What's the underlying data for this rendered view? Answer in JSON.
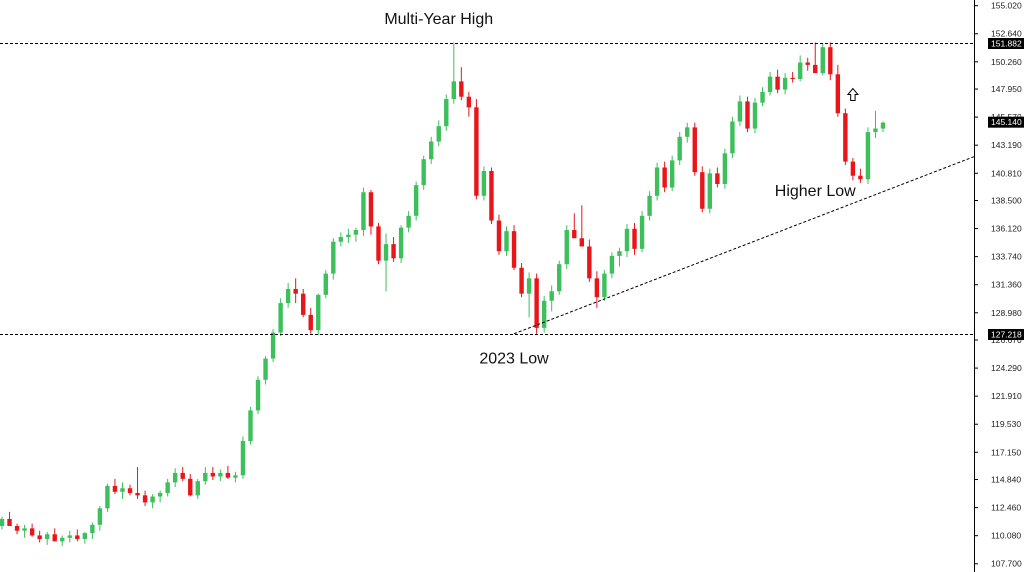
{
  "chart_data": {
    "type": "candlestick",
    "title": "",
    "xlabel": "",
    "ylabel": "",
    "ylim": [
      107.0,
      155.5
    ],
    "y_ticks": [
      "155.020",
      "152.640",
      "150.260",
      "147.950",
      "145.570",
      "143.190",
      "140.810",
      "138.500",
      "136.120",
      "133.740",
      "131.360",
      "128.980",
      "126.670",
      "124.290",
      "121.910",
      "119.530",
      "117.150",
      "114.840",
      "112.460",
      "110.080",
      "107.700"
    ],
    "grid": false,
    "colors": {
      "up": "#3dbf5c",
      "down": "#e8151b",
      "line": "#000000"
    },
    "horizontal_levels": [
      {
        "value": 151.882,
        "label": "151.882"
      },
      {
        "value": 127.218,
        "label": "127.218"
      }
    ],
    "current_price": {
      "value": 145.14,
      "label": "145.140"
    },
    "trendline": {
      "from": {
        "index": 68,
        "value": 127.2
      },
      "to": {
        "index": 140,
        "value": 144.9
      }
    },
    "annotations": [
      {
        "text": "Multi-Year High",
        "index": 58,
        "value": 153.9
      },
      {
        "text": "2023 Low",
        "index": 68,
        "value": 125.1
      },
      {
        "text": "Higher Low",
        "index": 108,
        "value": 139.3
      }
    ],
    "arrow_icon": {
      "name": "up-arrow-icon",
      "index": 113,
      "value": 147.4
    },
    "candles": [
      [
        110.9,
        111.7,
        110.6,
        111.5
      ],
      [
        111.5,
        112.1,
        111.2,
        110.9
      ],
      [
        110.9,
        111.1,
        110.2,
        110.5
      ],
      [
        110.5,
        111.0,
        109.9,
        110.7
      ],
      [
        110.7,
        111.1,
        110.0,
        110.1
      ],
      [
        110.1,
        110.5,
        109.5,
        109.8
      ],
      [
        109.8,
        110.4,
        109.3,
        110.2
      ],
      [
        110.2,
        110.7,
        109.6,
        109.6
      ],
      [
        109.6,
        110.1,
        109.2,
        109.9
      ],
      [
        109.9,
        110.5,
        109.5,
        110.1
      ],
      [
        110.1,
        110.6,
        109.6,
        109.8
      ],
      [
        109.8,
        110.4,
        109.4,
        110.3
      ],
      [
        110.3,
        111.2,
        109.8,
        111.0
      ],
      [
        111.0,
        112.6,
        110.5,
        112.4
      ],
      [
        112.4,
        114.5,
        112.1,
        114.3
      ],
      [
        114.3,
        114.9,
        113.6,
        113.8
      ],
      [
        113.8,
        114.6,
        113.2,
        114.1
      ],
      [
        114.1,
        114.4,
        113.5,
        113.7
      ],
      [
        113.7,
        115.9,
        113.2,
        113.5
      ],
      [
        113.5,
        113.9,
        112.6,
        112.9
      ],
      [
        112.9,
        113.6,
        112.4,
        113.4
      ],
      [
        113.4,
        113.9,
        112.9,
        113.7
      ],
      [
        113.7,
        114.9,
        113.4,
        114.6
      ],
      [
        114.6,
        115.8,
        114.2,
        115.4
      ],
      [
        115.4,
        115.9,
        114.7,
        114.9
      ],
      [
        114.9,
        115.3,
        113.4,
        113.5
      ],
      [
        113.5,
        114.9,
        113.2,
        114.7
      ],
      [
        114.7,
        115.9,
        114.4,
        115.4
      ],
      [
        115.4,
        115.9,
        114.8,
        115.1
      ],
      [
        115.1,
        115.7,
        114.7,
        115.4
      ],
      [
        115.4,
        116.0,
        114.9,
        115.0
      ],
      [
        115.0,
        115.5,
        114.6,
        115.2
      ],
      [
        115.2,
        118.5,
        114.9,
        118.1
      ],
      [
        118.1,
        121.0,
        117.8,
        120.7
      ],
      [
        120.7,
        123.6,
        120.4,
        123.3
      ],
      [
        123.3,
        125.3,
        122.9,
        125.1
      ],
      [
        125.1,
        127.6,
        124.8,
        127.3
      ],
      [
        127.3,
        130.2,
        127.0,
        129.8
      ],
      [
        129.8,
        131.5,
        129.4,
        131.0
      ],
      [
        131.0,
        131.9,
        129.8,
        130.6
      ],
      [
        130.6,
        131.0,
        128.6,
        128.8
      ],
      [
        128.8,
        129.4,
        127.2,
        127.5
      ],
      [
        127.5,
        130.6,
        127.1,
        130.5
      ],
      [
        130.5,
        132.6,
        130.2,
        132.3
      ],
      [
        132.3,
        135.3,
        131.8,
        135.0
      ],
      [
        135.0,
        135.8,
        134.6,
        135.4
      ],
      [
        135.4,
        136.1,
        134.9,
        135.6
      ],
      [
        135.6,
        136.2,
        135.0,
        136.0
      ],
      [
        136.0,
        139.6,
        135.5,
        139.2
      ],
      [
        139.2,
        139.4,
        135.6,
        136.3
      ],
      [
        136.3,
        136.6,
        133.1,
        133.4
      ],
      [
        133.4,
        135.7,
        130.8,
        134.8
      ],
      [
        134.8,
        135.4,
        133.3,
        133.6
      ],
      [
        133.6,
        136.4,
        133.2,
        136.2
      ],
      [
        136.2,
        137.6,
        135.8,
        137.2
      ],
      [
        137.2,
        140.1,
        136.8,
        139.8
      ],
      [
        139.8,
        142.3,
        139.4,
        142.0
      ],
      [
        142.0,
        143.9,
        141.6,
        143.5
      ],
      [
        143.5,
        145.3,
        143.1,
        144.8
      ],
      [
        144.8,
        147.5,
        144.4,
        147.1
      ],
      [
        147.1,
        151.9,
        146.7,
        148.6
      ],
      [
        148.6,
        149.8,
        147.0,
        147.3
      ],
      [
        147.3,
        147.7,
        145.6,
        146.4
      ],
      [
        146.4,
        147.1,
        138.6,
        138.9
      ],
      [
        138.9,
        141.4,
        138.5,
        141.0
      ],
      [
        141.0,
        141.3,
        136.5,
        136.8
      ],
      [
        136.8,
        137.3,
        133.9,
        134.2
      ],
      [
        134.2,
        136.3,
        133.8,
        135.9
      ],
      [
        135.9,
        136.4,
        132.6,
        132.8
      ],
      [
        132.8,
        133.2,
        130.3,
        130.6
      ],
      [
        130.6,
        132.4,
        128.6,
        131.9
      ],
      [
        131.9,
        132.3,
        127.2,
        127.7
      ],
      [
        127.7,
        130.4,
        127.3,
        130.0
      ],
      [
        130.0,
        131.3,
        129.1,
        130.8
      ],
      [
        130.8,
        133.4,
        130.5,
        133.1
      ],
      [
        133.1,
        136.4,
        132.7,
        136.0
      ],
      [
        136.0,
        137.4,
        135.6,
        135.3
      ],
      [
        135.3,
        138.1,
        134.8,
        134.6
      ],
      [
        134.6,
        135.2,
        131.6,
        131.9
      ],
      [
        131.9,
        132.5,
        129.4,
        130.3
      ],
      [
        130.3,
        132.6,
        130.0,
        132.3
      ],
      [
        132.3,
        134.1,
        131.9,
        133.8
      ],
      [
        133.8,
        134.5,
        132.9,
        134.2
      ],
      [
        134.2,
        136.5,
        133.7,
        136.1
      ],
      [
        136.1,
        136.6,
        133.9,
        134.4
      ],
      [
        134.4,
        137.6,
        134.1,
        137.2
      ],
      [
        137.2,
        139.3,
        136.8,
        138.9
      ],
      [
        138.9,
        141.7,
        138.5,
        141.3
      ],
      [
        141.3,
        141.8,
        139.2,
        139.6
      ],
      [
        139.6,
        142.3,
        139.3,
        141.9
      ],
      [
        141.9,
        144.3,
        141.5,
        143.9
      ],
      [
        143.9,
        145.1,
        143.4,
        144.7
      ],
      [
        144.7,
        145.1,
        140.6,
        140.9
      ],
      [
        140.9,
        141.4,
        137.5,
        137.8
      ],
      [
        137.8,
        141.2,
        137.4,
        140.8
      ],
      [
        140.8,
        141.3,
        139.6,
        139.9
      ],
      [
        139.9,
        142.9,
        139.5,
        142.5
      ],
      [
        142.5,
        145.6,
        142.1,
        145.2
      ],
      [
        145.2,
        147.4,
        144.8,
        146.9
      ],
      [
        146.9,
        147.3,
        144.3,
        144.6
      ],
      [
        144.6,
        147.2,
        144.2,
        146.8
      ],
      [
        146.8,
        148.1,
        146.5,
        147.7
      ],
      [
        147.7,
        149.4,
        147.4,
        149.0
      ],
      [
        149.0,
        149.6,
        147.6,
        147.9
      ],
      [
        147.9,
        149.3,
        147.5,
        148.9
      ],
      [
        148.9,
        149.4,
        148.5,
        148.8
      ],
      [
        148.8,
        150.8,
        148.6,
        150.2
      ],
      [
        150.2,
        150.6,
        149.5,
        150.0
      ],
      [
        150.0,
        151.9,
        149.7,
        149.3
      ],
      [
        149.3,
        151.8,
        149.1,
        151.5
      ],
      [
        151.5,
        151.9,
        148.7,
        149.2
      ],
      [
        149.2,
        150.0,
        145.6,
        145.9
      ],
      [
        145.9,
        146.3,
        141.5,
        141.8
      ],
      [
        141.8,
        142.1,
        140.2,
        140.6
      ],
      [
        140.6,
        141.2,
        140.0,
        140.3
      ],
      [
        140.3,
        144.7,
        139.9,
        144.3
      ],
      [
        144.3,
        146.1,
        143.8,
        144.6
      ],
      [
        144.6,
        145.2,
        144.3,
        145.1
      ]
    ]
  }
}
